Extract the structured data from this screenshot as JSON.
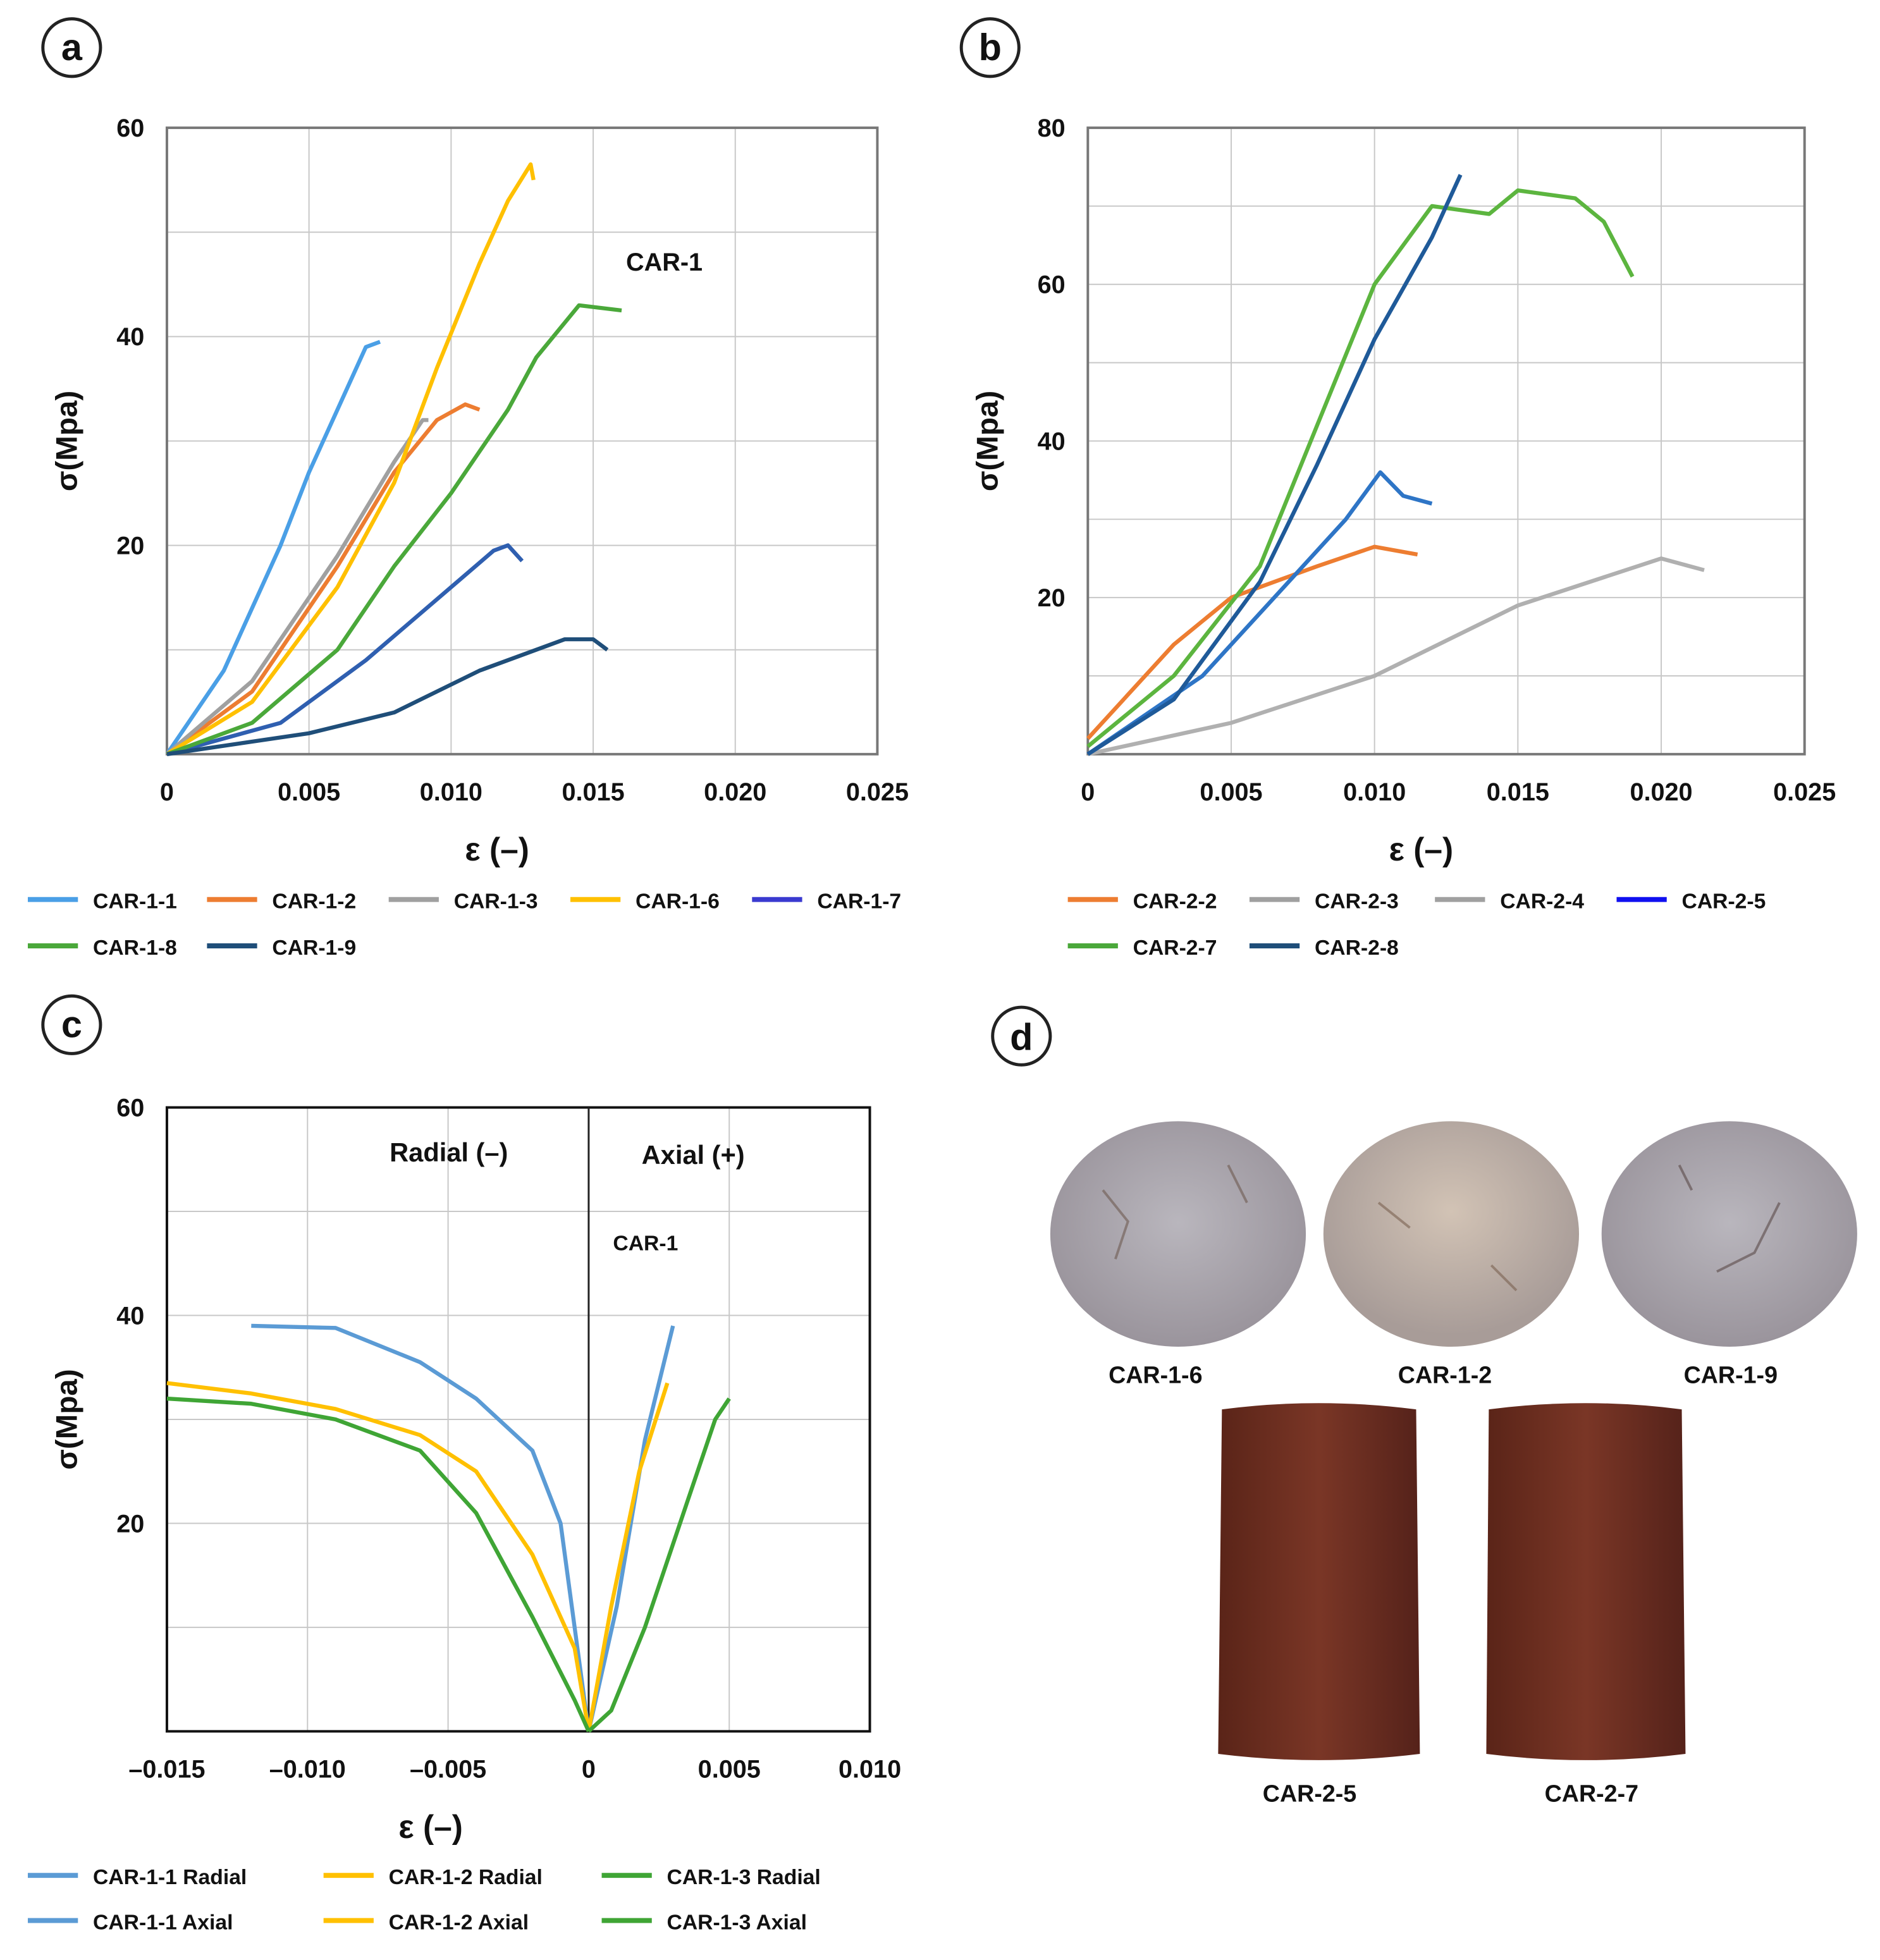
{
  "chart_data": [
    {
      "panel": "a",
      "type": "line",
      "annotation": "CAR-1",
      "xlabel": "ε (–)",
      "ylabel": "σ(Mpa)",
      "xlim": [
        0,
        0.025
      ],
      "ylim": [
        0,
        60
      ],
      "grid": true,
      "legend_position": "bottom",
      "xticks": [
        "0",
        "0.005",
        "0.010",
        "0.015",
        "0.020",
        "0.025"
      ],
      "yticks": [
        "20",
        "40",
        "60"
      ],
      "series": [
        {
          "name": "CAR-1-1",
          "color": "#4a9fe6",
          "x": [
            0,
            0.002,
            0.004,
            0.005,
            0.006,
            0.007,
            0.0075
          ],
          "y": [
            0,
            8,
            20,
            27,
            33,
            39,
            39.5
          ]
        },
        {
          "name": "CAR-1-2",
          "color": "#ed7d31",
          "x": [
            0,
            0.003,
            0.006,
            0.008,
            0.0095,
            0.0105,
            0.011
          ],
          "y": [
            0,
            6,
            18,
            27,
            32,
            33.5,
            33
          ]
        },
        {
          "name": "CAR-1-3",
          "color": "#a0a0a0",
          "x": [
            0,
            0.003,
            0.006,
            0.008,
            0.009,
            0.0092
          ],
          "y": [
            0,
            7,
            19,
            28,
            32,
            32
          ]
        },
        {
          "name": "CAR-1-6",
          "color": "#ffc000",
          "x": [
            0,
            0.003,
            0.006,
            0.008,
            0.0095,
            0.011,
            0.012,
            0.0128,
            0.0129
          ],
          "y": [
            0,
            5,
            16,
            26,
            37,
            47,
            53,
            56.5,
            55
          ]
        },
        {
          "name": "CAR-1-7",
          "color": "#2f5fb0",
          "x": [
            0,
            0.004,
            0.007,
            0.01,
            0.0115,
            0.012,
            0.0125
          ],
          "y": [
            0,
            3,
            9,
            16,
            19.5,
            20,
            18.5
          ]
        },
        {
          "name": "CAR-1-8",
          "color": "#4aa83a",
          "x": [
            0,
            0.003,
            0.006,
            0.008,
            0.01,
            0.012,
            0.013,
            0.0145,
            0.016
          ],
          "y": [
            0,
            3,
            10,
            18,
            25,
            33,
            38,
            43,
            42.5
          ]
        },
        {
          "name": "CAR-1-9",
          "color": "#1f4e79",
          "x": [
            0,
            0.005,
            0.008,
            0.011,
            0.014,
            0.015,
            0.0155
          ],
          "y": [
            0,
            2,
            4,
            8,
            11,
            11,
            10
          ]
        }
      ],
      "legend": [
        {
          "label": "CAR-1-1",
          "color": "#4a9fe6"
        },
        {
          "label": "CAR-1-2",
          "color": "#ed7d31"
        },
        {
          "label": "CAR-1-3",
          "color": "#a0a0a0"
        },
        {
          "label": "CAR-1-6",
          "color": "#ffc000"
        },
        {
          "label": "CAR-1-7",
          "color": "#3a3ad0"
        },
        {
          "label": "CAR-1-8",
          "color": "#4aa83a"
        },
        {
          "label": "CAR-1-9",
          "color": "#1f4e79"
        }
      ]
    },
    {
      "panel": "b",
      "type": "line",
      "xlabel": "ε (–)",
      "ylabel": "σ(Mpa)",
      "xlim": [
        0,
        0.025
      ],
      "ylim": [
        0,
        80
      ],
      "grid": true,
      "legend_position": "bottom",
      "xticks": [
        "0",
        "0.005",
        "0.010",
        "0.015",
        "0.020",
        "0.025"
      ],
      "yticks": [
        "20",
        "40",
        "60",
        "80"
      ],
      "series": [
        {
          "name": "CAR-2-2",
          "color": "#ed7d31",
          "x": [
            0,
            0.003,
            0.005,
            0.008,
            0.01,
            0.0115
          ],
          "y": [
            2,
            14,
            20,
            24,
            26.5,
            25.5
          ]
        },
        {
          "name": "CAR-2-3",
          "color": "#b0b0b0",
          "x": [
            0,
            0.005,
            0.01,
            0.015,
            0.02,
            0.0215
          ],
          "y": [
            0,
            4,
            10,
            19,
            25,
            23.5
          ]
        },
        {
          "name": "CAR-2-4",
          "color": "#a0a0a0",
          "x": [],
          "y": []
        },
        {
          "name": "CAR-2-5",
          "color": "#2e75c6",
          "x": [
            0,
            0.004,
            0.007,
            0.009,
            0.0102,
            0.011,
            0.012
          ],
          "y": [
            0,
            10,
            22,
            30,
            36,
            33,
            32
          ]
        },
        {
          "name": "CAR-2-7",
          "color": "#5cb53f",
          "x": [
            0,
            0.003,
            0.006,
            0.008,
            0.01,
            0.012,
            0.014,
            0.015,
            0.017,
            0.018,
            0.019
          ],
          "y": [
            1,
            10,
            24,
            42,
            60,
            70,
            69,
            72,
            71,
            68,
            61
          ]
        },
        {
          "name": "CAR-2-8",
          "color": "#1f5a99",
          "x": [
            0,
            0.003,
            0.006,
            0.008,
            0.01,
            0.012,
            0.013
          ],
          "y": [
            0,
            7,
            22,
            37,
            53,
            66,
            74
          ]
        }
      ],
      "legend": [
        {
          "label": "CAR-2-2",
          "color": "#ed7d31"
        },
        {
          "label": "CAR-2-3",
          "color": "#a0a0a0"
        },
        {
          "label": "CAR-2-4",
          "color": "#a0a0a0"
        },
        {
          "label": "CAR-2-5",
          "color": "#1010f0"
        },
        {
          "label": "CAR-2-7",
          "color": "#4aa83a"
        },
        {
          "label": "CAR-2-8",
          "color": "#1f4e79"
        }
      ]
    },
    {
      "panel": "c",
      "type": "line",
      "annotation": "CAR-1",
      "region_labels": [
        "Radial (–)",
        "Axial (+)"
      ],
      "xlabel": "ε (–)",
      "ylabel": "σ(Mpa)",
      "xlim": [
        -0.015,
        0.01
      ],
      "ylim": [
        0,
        60
      ],
      "grid": true,
      "legend_position": "bottom",
      "xticks": [
        "–0.015",
        "–0.010",
        "–0.005",
        "0",
        "0.005",
        "0.010"
      ],
      "yticks": [
        "20",
        "40",
        "60"
      ],
      "series": [
        {
          "name": "CAR-1-1 Radial",
          "color": "#5b9bd5",
          "x": [
            -0.012,
            -0.009,
            -0.006,
            -0.004,
            -0.002,
            -0.001,
            0
          ],
          "y": [
            39,
            38.8,
            35.5,
            32,
            27,
            20,
            0
          ]
        },
        {
          "name": "CAR-1-1 Axial",
          "color": "#5b9bd5",
          "x": [
            0,
            0.001,
            0.002,
            0.003
          ],
          "y": [
            0,
            12,
            28,
            39
          ]
        },
        {
          "name": "CAR-1-2 Radial",
          "color": "#ffc000",
          "x": [
            -0.015,
            -0.012,
            -0.009,
            -0.006,
            -0.004,
            -0.002,
            -0.0005,
            0
          ],
          "y": [
            33.5,
            32.5,
            31,
            28.5,
            25,
            17,
            8,
            0
          ]
        },
        {
          "name": "CAR-1-2 Axial",
          "color": "#ffc000",
          "x": [
            0,
            0.0008,
            0.0018,
            0.0028
          ],
          "y": [
            0,
            12,
            25,
            33.5
          ]
        },
        {
          "name": "CAR-1-3 Radial",
          "color": "#3fa535",
          "x": [
            -0.015,
            -0.012,
            -0.009,
            -0.006,
            -0.004,
            -0.002,
            -0.0005,
            0
          ],
          "y": [
            32,
            31.5,
            30,
            27,
            21,
            11,
            3,
            0
          ]
        },
        {
          "name": "CAR-1-3 Axial",
          "color": "#3fa535",
          "x": [
            0,
            0.0008,
            0.002,
            0.0035,
            0.0045,
            0.005
          ],
          "y": [
            0,
            2,
            10,
            22,
            30,
            32
          ]
        }
      ]
    }
  ],
  "panels": {
    "a": "a",
    "b": "b",
    "c": "c",
    "d": "d"
  },
  "photos": {
    "discs": [
      "CAR-1-6",
      "CAR-1-2",
      "CAR-1-9"
    ],
    "cylinders": [
      "CAR-2-5",
      "CAR-2-7"
    ]
  }
}
